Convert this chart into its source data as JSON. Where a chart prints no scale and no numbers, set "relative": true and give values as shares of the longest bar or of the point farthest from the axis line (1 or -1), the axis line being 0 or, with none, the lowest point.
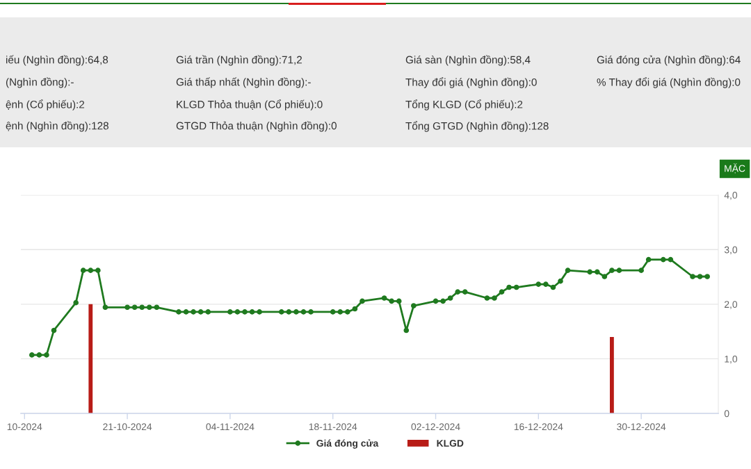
{
  "chart_data": [
    {
      "type": "other",
      "annotations": [
        "iếu (Nghìn đồng):64,8",
        "(Nghìn đồng):-",
        "ệnh (Cổ phiếu):2",
        "ệnh (Nghìn đồng):128",
        "Giá trần (Nghìn đồng):71,2",
        "Giá thấp nhất (Nghìn đồng):-",
        "KLGD Thỏa thuận (Cổ phiếu):0",
        "GTGD Thỏa thuận (Nghìn đồng):0",
        "Giá sàn (Nghìn đồng):58,4",
        "Thay đổi giá (Nghìn đồng):0",
        "Tổng KLGD (Cổ phiếu):2",
        "Tổng GTGD (Nghìn đồng):128",
        "Giá đóng cửa (Nghìn đồng):64",
        "% Thay đổi giá (Nghìn đồng):0"
      ]
    },
    {
      "type": "line",
      "relative": true,
      "series": [
        {
          "name": "Giá đóng cửa",
          "color": "#1f7a1f",
          "x": [
            "2024-10-08",
            "2024-10-09",
            "2024-10-10",
            "2024-10-11",
            "2024-10-14",
            "2024-10-15",
            "2024-10-16",
            "2024-10-17",
            "2024-10-18",
            "2024-10-21",
            "2024-10-22",
            "2024-10-23",
            "2024-10-24",
            "2024-10-25",
            "2024-10-28",
            "2024-10-29",
            "2024-10-30",
            "2024-10-31",
            "2024-11-01",
            "2024-11-04",
            "2024-11-05",
            "2024-11-06",
            "2024-11-07",
            "2024-11-08",
            "2024-11-11",
            "2024-11-12",
            "2024-11-13",
            "2024-11-14",
            "2024-11-15",
            "2024-11-18",
            "2024-11-19",
            "2024-11-20",
            "2024-11-21",
            "2024-11-22",
            "2024-11-25",
            "2024-11-26",
            "2024-11-27",
            "2024-11-28",
            "2024-11-29",
            "2024-12-02",
            "2024-12-03",
            "2024-12-04",
            "2024-12-05",
            "2024-12-06",
            "2024-12-09",
            "2024-12-10",
            "2024-12-11",
            "2024-12-12",
            "2024-12-13",
            "2024-12-16",
            "2024-12-17",
            "2024-12-18",
            "2024-12-19",
            "2024-12-20",
            "2024-12-23",
            "2024-12-24",
            "2024-12-25",
            "2024-12-26",
            "2024-12-27",
            "2024-12-30",
            "2024-12-31",
            "2025-01-02",
            "2025-01-03",
            "2025-01-06",
            "2025-01-07",
            "2025-01-08"
          ],
          "values": [
            0.38,
            0.38,
            0.38,
            0.54,
            0.72,
            0.93,
            0.93,
            0.93,
            0.69,
            0.69,
            0.69,
            0.69,
            0.69,
            0.69,
            0.66,
            0.66,
            0.66,
            0.66,
            0.66,
            0.66,
            0.66,
            0.66,
            0.66,
            0.66,
            0.66,
            0.66,
            0.66,
            0.66,
            0.66,
            0.66,
            0.66,
            0.66,
            0.68,
            0.73,
            0.75,
            0.73,
            0.73,
            0.54,
            0.7,
            0.73,
            0.73,
            0.75,
            0.79,
            0.79,
            0.75,
            0.75,
            0.79,
            0.82,
            0.82,
            0.84,
            0.84,
            0.82,
            0.86,
            0.93,
            0.92,
            0.92,
            0.89,
            0.93,
            0.93,
            0.93,
            1.0,
            1.0,
            1.0,
            0.89,
            0.89,
            0.89
          ]
        }
      ],
      "xlim": [
        "2024-10-06T12:00",
        "2025-01-09T12:00"
      ],
      "xticks": [
        {
          "value": "2024-10-07",
          "label": "10-2024"
        },
        {
          "value": "2024-10-21",
          "label": "21-10-2024"
        },
        {
          "value": "2024-11-04",
          "label": "04-11-2024"
        },
        {
          "value": "2024-11-18",
          "label": "18-11-2024"
        },
        {
          "value": "2024-12-02",
          "label": "02-12-2024"
        },
        {
          "value": "2024-12-16",
          "label": "16-12-2024"
        },
        {
          "value": "2024-12-30",
          "label": "30-12-2024"
        }
      ],
      "tick_labels": "x",
      "legend": "bottom",
      "marker": "circle",
      "line_style": "solid",
      "annotations": [
        "MẶC"
      ]
    },
    {
      "type": "bar",
      "series": [
        {
          "name": "KLGD",
          "color": "#b81c17",
          "x": [
            "2024-10-16",
            "2024-12-26"
          ],
          "values": [
            2.0,
            1.4
          ]
        }
      ],
      "xlim": [
        "2024-10-06T12:00",
        "2025-01-09T12:00"
      ],
      "ylim": [
        0,
        4
      ],
      "yticks": [
        0,
        {
          "value": 1,
          "label": "1,0"
        },
        {
          "value": 2,
          "label": "2,0"
        },
        {
          "value": 3,
          "label": "3,0"
        },
        {
          "value": 4,
          "label": "4,0"
        }
      ],
      "tick_labels": "y",
      "grid": "y",
      "legend": "bottom"
    }
  ]
}
